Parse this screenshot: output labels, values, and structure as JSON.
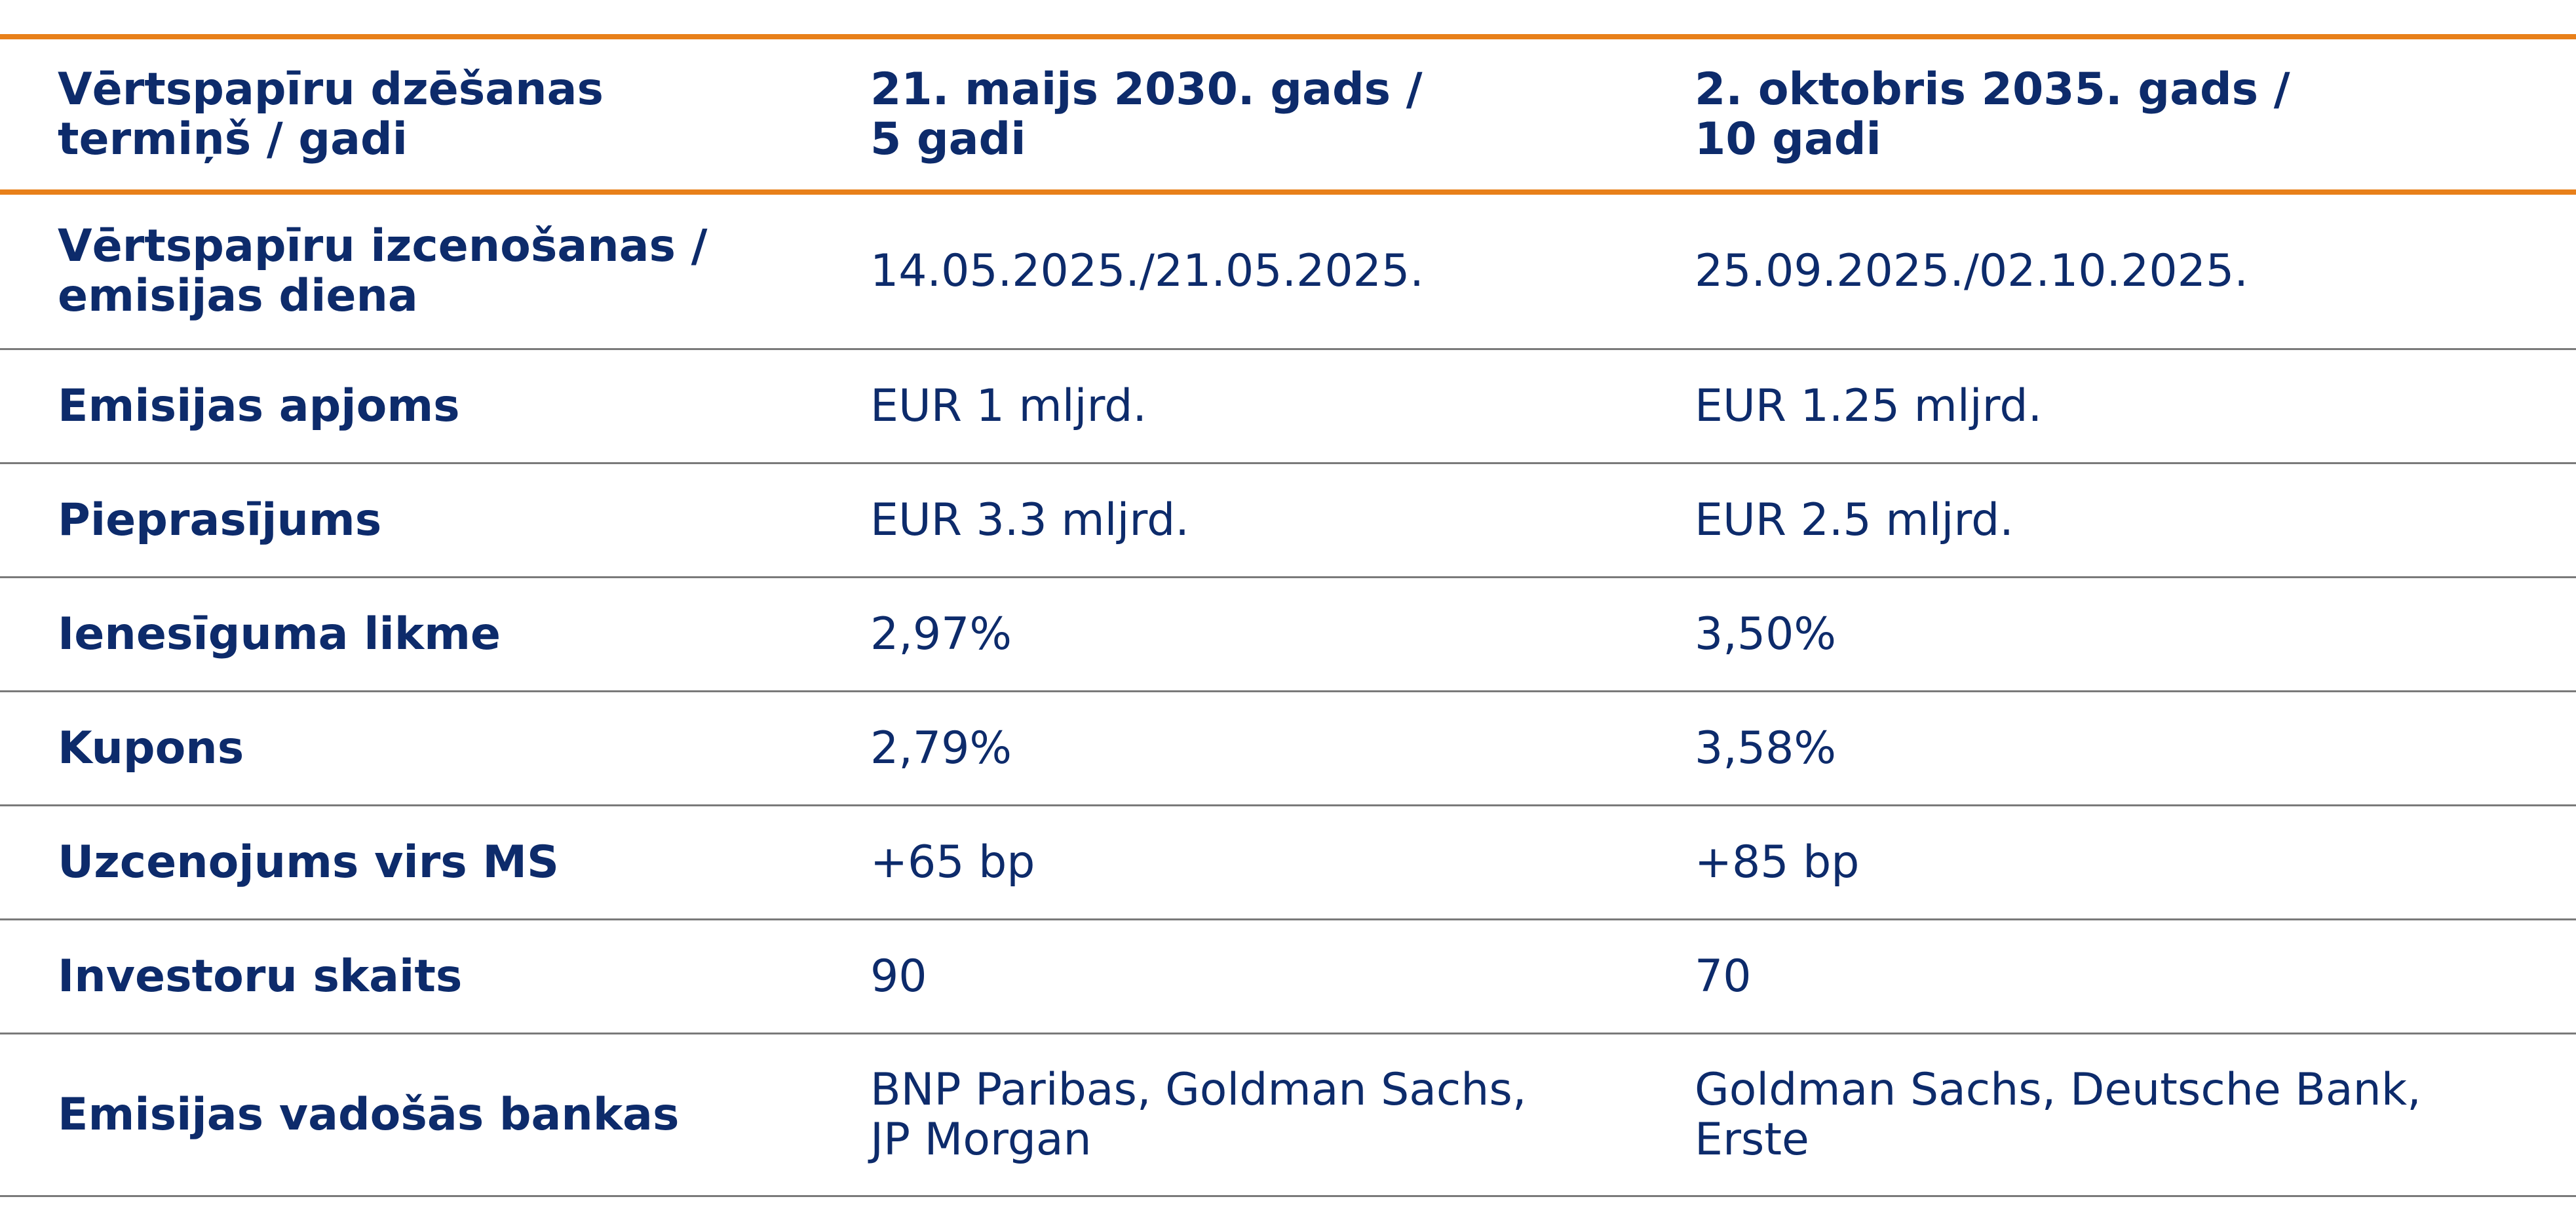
{
  "header": {
    "col1": "Vērtspapīru dzēšanas\ntermiņš / gadi",
    "col2": "21. maijs 2030. gads /\n5 gadi",
    "col3": "2. oktobris 2035. gads /\n10 gadi"
  },
  "rows": [
    {
      "label": "Vērtspapīru izcenošanas /\nemisijas diena",
      "v1": "14.05.2025./21.05.2025.",
      "v2": "25.09.2025./02.10.2025."
    },
    {
      "label": "Emisijas apjoms",
      "v1": "EUR 1 mljrd.",
      "v2": "EUR 1.25 mljrd."
    },
    {
      "label": "Pieprasījums",
      "v1": "EUR 3.3 mljrd.",
      "v2": "EUR 2.5 mljrd."
    },
    {
      "label": "Ienesīguma likme",
      "v1": "2,97%",
      "v2": "3,50%"
    },
    {
      "label": "Kupons",
      "v1": "2,79%",
      "v2": "3,58%"
    },
    {
      "label": "Uzcenojums virs MS",
      "v1": "+65 bp",
      "v2": "+85 bp"
    },
    {
      "label": "Investoru skaits",
      "v1": "90",
      "v2": "70"
    },
    {
      "label": "Emisijas vadošās bankas",
      "v1": "BNP Paribas, Goldman Sachs,\nJP Morgan",
      "v2": "Goldman Sachs, Deutsche Bank,\nErste"
    }
  ],
  "colors": {
    "text": "#0d2b6b",
    "accent_rule": "#e8801a",
    "row_rule": "#7a7a7a"
  }
}
